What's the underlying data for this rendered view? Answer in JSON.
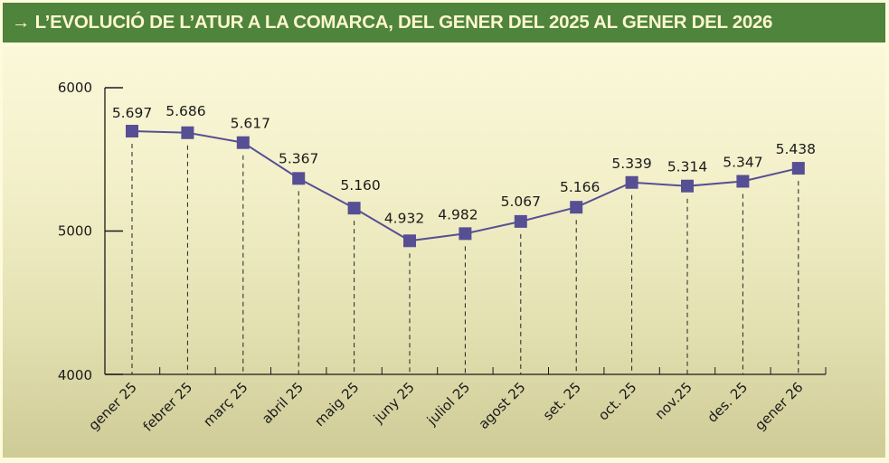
{
  "header": {
    "title": "→ L’EVOLUCIÓ DE L’ATUR A LA COMARCA, DEL GENER DEL 2025 AL GENER DEL 2026"
  },
  "colors": {
    "header_bg": "#4e843b",
    "header_text": "#fdf6cf",
    "line": "#574f93",
    "marker": "#574f93",
    "axis": "#1a1a1a"
  },
  "chart_data": {
    "type": "line",
    "title": "→ L’EVOLUCIÓ DE L’ATUR A LA COMARCA, DEL GENER DEL 2025 AL GENER DEL 2026",
    "xlabel": "",
    "ylabel": "",
    "ylim": [
      4000,
      6000
    ],
    "yticks": [
      4000,
      5000,
      6000
    ],
    "ytick_labels": [
      "4000",
      "5000",
      "6000"
    ],
    "grid": false,
    "legend": "none",
    "categories": [
      "gener 25",
      "febrer 25",
      "març 25",
      "abril 25",
      "maig 25",
      "juny 25",
      "juliol 25",
      "agost 25",
      "set. 25",
      "oct. 25",
      "nov.25",
      "des. 25",
      "gener 26"
    ],
    "series": [
      {
        "name": "Atur",
        "values": [
          5697,
          5686,
          5617,
          5367,
          5160,
          4932,
          4982,
          5067,
          5166,
          5339,
          5314,
          5347,
          5438
        ],
        "labels": [
          "5.697",
          "5.686",
          "5.617",
          "5.367",
          "5.160",
          "4.932",
          "4.982",
          "5.067",
          "5.166",
          "5.339",
          "5.314",
          "5.347",
          "5.438"
        ]
      }
    ]
  }
}
